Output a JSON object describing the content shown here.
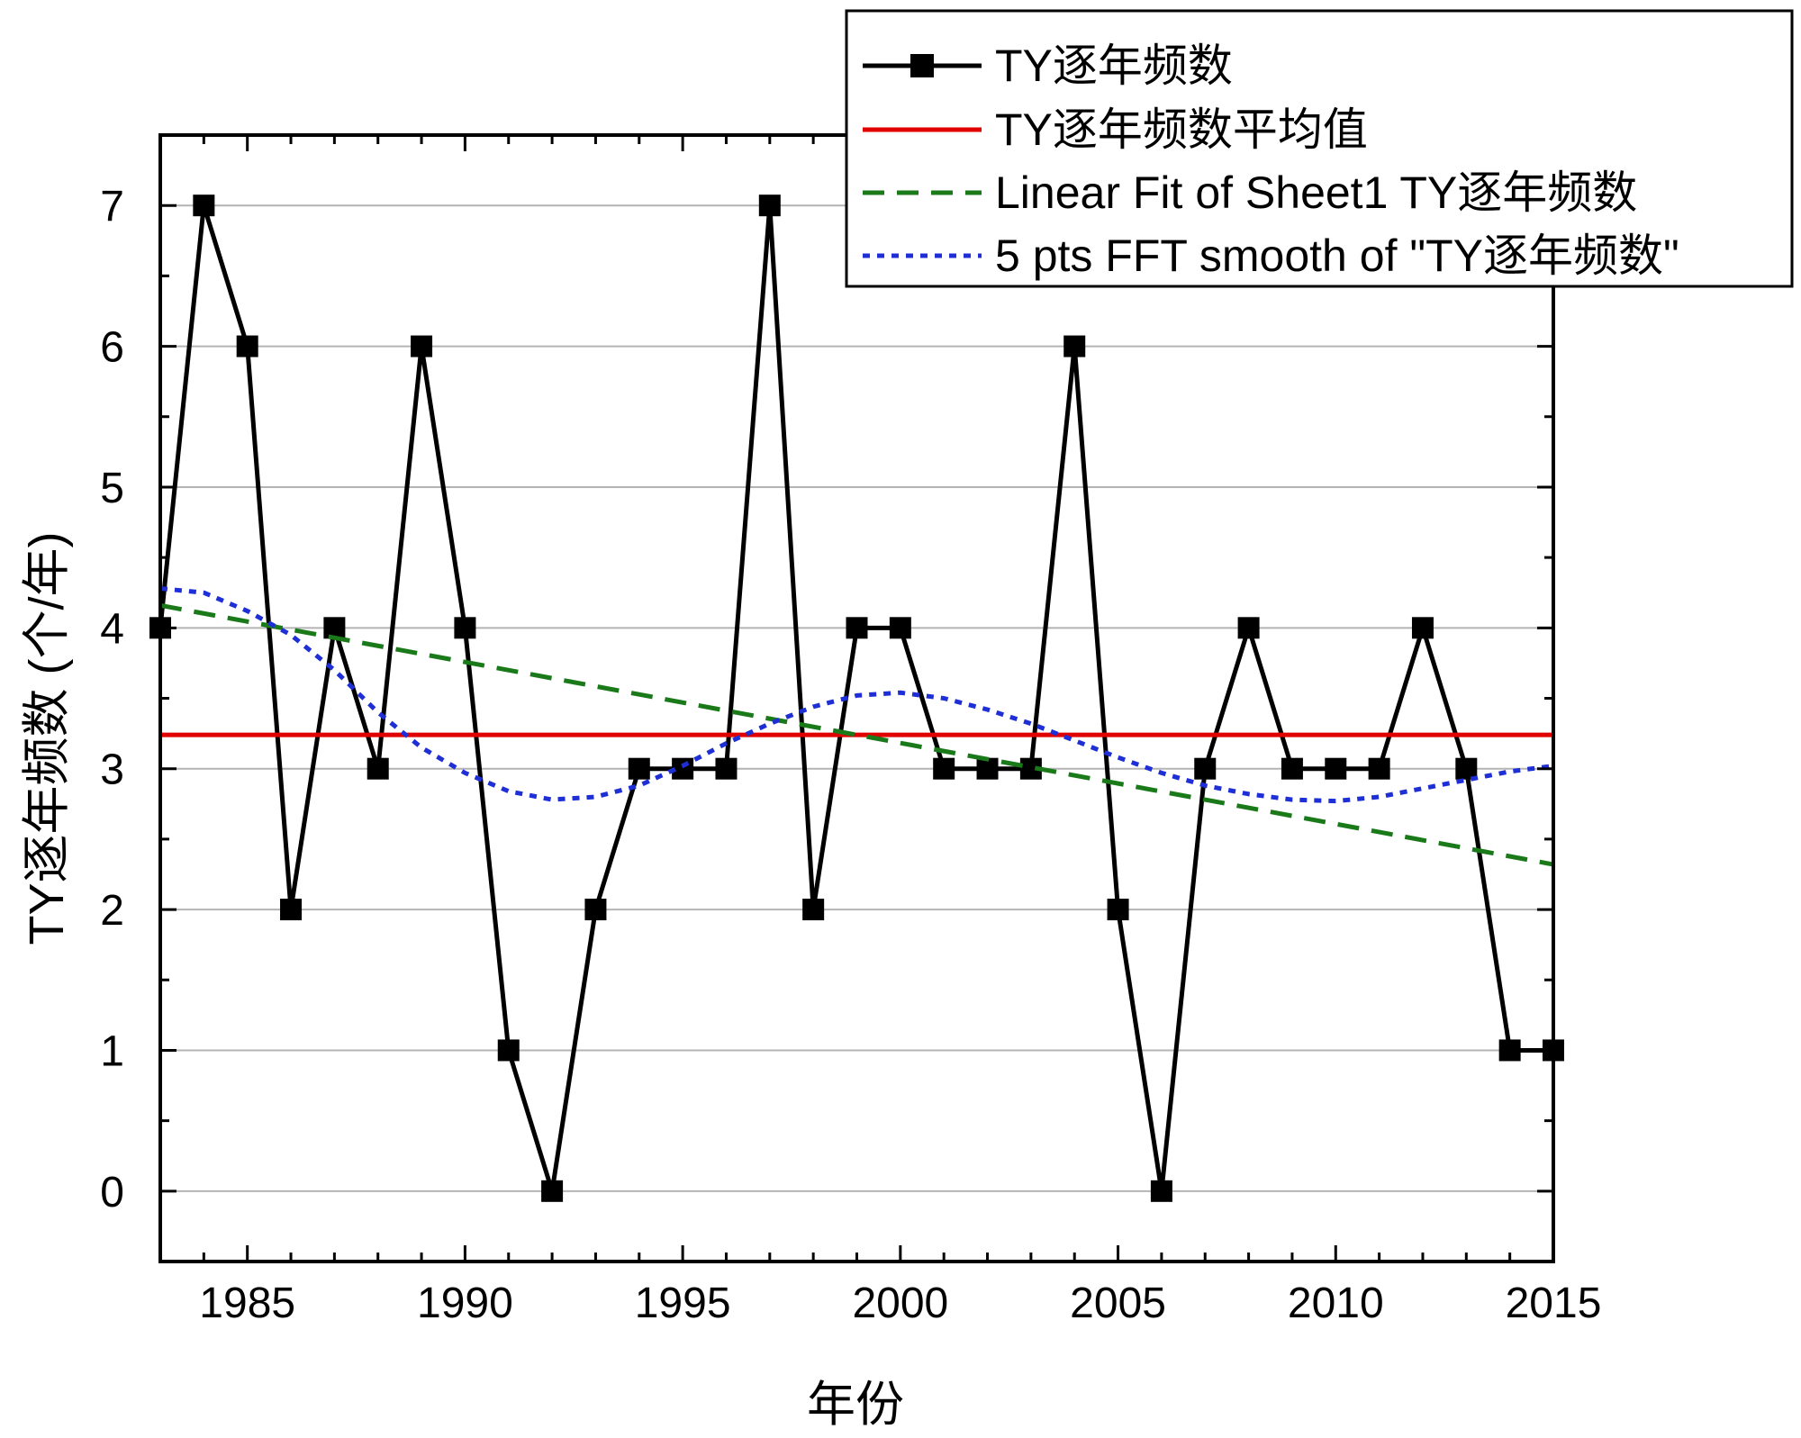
{
  "chart_data": {
    "type": "line",
    "title": "",
    "xlabel": "年份",
    "ylabel": "TY逐年频数 (个/年)",
    "xlim": [
      1983,
      2015
    ],
    "ylim": [
      -0.5,
      7.5
    ],
    "xticks": [
      1985,
      1990,
      1995,
      2000,
      2005,
      2010,
      2015
    ],
    "yticks": [
      0,
      1,
      2,
      3,
      4,
      5,
      6,
      7
    ],
    "grid": "horizontal",
    "legend_position": "top-right",
    "series": [
      {
        "name": "TY逐年频数",
        "style": "line-square-markers",
        "color": "#000000",
        "x": [
          1983,
          1984,
          1985,
          1986,
          1987,
          1988,
          1989,
          1990,
          1991,
          1992,
          1993,
          1994,
          1995,
          1996,
          1997,
          1998,
          1999,
          2000,
          2001,
          2002,
          2003,
          2004,
          2005,
          2006,
          2007,
          2008,
          2009,
          2010,
          2011,
          2012,
          2013,
          2014,
          2015
        ],
        "values": [
          4,
          7,
          6,
          2,
          4,
          3,
          6,
          4,
          1,
          0,
          2,
          3,
          3,
          3,
          7,
          2,
          4,
          4,
          3,
          3,
          3,
          6,
          2,
          0,
          3,
          4,
          3,
          3,
          3,
          4,
          3,
          1,
          1
        ]
      },
      {
        "name": "TY逐年频数平均值",
        "style": "solid",
        "color": "#e00000",
        "x": [
          1983,
          2015
        ],
        "values": [
          3.24,
          3.24
        ]
      },
      {
        "name": "Linear Fit of Sheet1 TY逐年频数",
        "style": "dashed",
        "color": "#1a7a1a",
        "x": [
          1983,
          2015
        ],
        "values": [
          4.16,
          2.32
        ]
      },
      {
        "name": "5 pts FFT smooth of \"TY逐年频数\"",
        "style": "dotted",
        "color": "#1f2fd6",
        "x": [
          1983,
          1984,
          1985,
          1986,
          1987,
          1988,
          1989,
          1990,
          1991,
          1992,
          1993,
          1994,
          1995,
          1996,
          1997,
          1998,
          1999,
          2000,
          2001,
          2002,
          2003,
          2004,
          2005,
          2006,
          2007,
          2008,
          2009,
          2010,
          2011,
          2012,
          2013,
          2014,
          2015
        ],
        "values": [
          4.28,
          4.25,
          4.12,
          3.95,
          3.7,
          3.4,
          3.15,
          2.97,
          2.84,
          2.78,
          2.8,
          2.88,
          3.02,
          3.18,
          3.32,
          3.44,
          3.52,
          3.54,
          3.5,
          3.42,
          3.32,
          3.2,
          3.08,
          2.97,
          2.88,
          2.82,
          2.78,
          2.77,
          2.8,
          2.86,
          2.92,
          2.98,
          3.02
        ]
      }
    ]
  },
  "colors": {
    "data": "#000000",
    "mean": "#e00000",
    "fit": "#1a7a1a",
    "smooth": "#1f2fd6"
  }
}
